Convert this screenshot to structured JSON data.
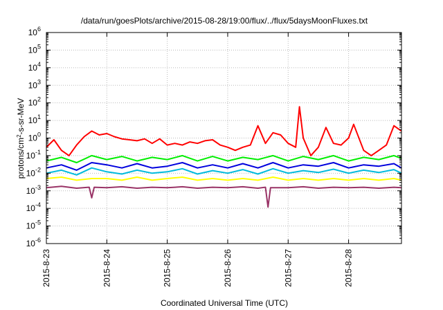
{
  "chart_data": {
    "type": "line",
    "title": "/data/run/goesPlots/archive/2015-08-28/19:00/flux/../flux/5daysMoonFluxes.txt",
    "xlabel": "Coordinated Universal Time (UTC)",
    "ylabel": {
      "prefix": "protons/cm",
      "superscript": "2",
      "suffix": "-s-sr-MeV"
    },
    "y_scale": "log",
    "ylim": [
      1e-06,
      1000000.0
    ],
    "y_ticks": [
      {
        "exp": -6,
        "base": "10",
        "sup": "-6"
      },
      {
        "exp": -5,
        "base": "10",
        "sup": "-5"
      },
      {
        "exp": -4,
        "base": "10",
        "sup": "-4"
      },
      {
        "exp": -3,
        "base": "10",
        "sup": "-3"
      },
      {
        "exp": -2,
        "base": "10",
        "sup": "-2"
      },
      {
        "exp": -1,
        "base": "10",
        "sup": "-1"
      },
      {
        "exp": 0,
        "base": "10",
        "sup": "0"
      },
      {
        "exp": 1,
        "base": "10",
        "sup": "1"
      },
      {
        "exp": 2,
        "base": "10",
        "sup": "2"
      },
      {
        "exp": 3,
        "base": "10",
        "sup": "3"
      },
      {
        "exp": 4,
        "base": "10",
        "sup": "4"
      },
      {
        "exp": 5,
        "base": "10",
        "sup": "5"
      },
      {
        "exp": 6,
        "base": "10",
        "sup": "6"
      }
    ],
    "xlim": [
      "2015-08-23T00:00",
      "2015-08-28T21:00"
    ],
    "x_ticks": [
      {
        "date": "2015-08-23T00:00",
        "label": "2015-8-23"
      },
      {
        "date": "2015-08-24T00:00",
        "label": "2015-8-24"
      },
      {
        "date": "2015-08-25T00:00",
        "label": "2015-8-25"
      },
      {
        "date": "2015-08-26T00:00",
        "label": "2015-8-26"
      },
      {
        "date": "2015-08-27T00:00",
        "label": "2015-8-27"
      },
      {
        "date": "2015-08-28T00:00",
        "label": "2015-8-28"
      }
    ],
    "grid": true,
    "legend": "none",
    "series": [
      {
        "color": "#ff0000",
        "points": [
          [
            "2015-08-23T00:00",
            0.3
          ],
          [
            "2015-08-23T03:00",
            0.8
          ],
          [
            "2015-08-23T06:00",
            0.2
          ],
          [
            "2015-08-23T09:00",
            0.1
          ],
          [
            "2015-08-23T12:00",
            0.4
          ],
          [
            "2015-08-23T15:00",
            1.2
          ],
          [
            "2015-08-23T18:00",
            2.5
          ],
          [
            "2015-08-23T21:00",
            1.5
          ],
          [
            "2015-08-24T00:00",
            1.8
          ],
          [
            "2015-08-24T03:00",
            1.2
          ],
          [
            "2015-08-24T06:00",
            0.9
          ],
          [
            "2015-08-24T09:00",
            0.8
          ],
          [
            "2015-08-24T12:00",
            0.7
          ],
          [
            "2015-08-24T15:00",
            0.9
          ],
          [
            "2015-08-24T18:00",
            0.5
          ],
          [
            "2015-08-24T21:00",
            0.9
          ],
          [
            "2015-08-25T00:00",
            0.4
          ],
          [
            "2015-08-25T03:00",
            0.5
          ],
          [
            "2015-08-25T06:00",
            0.4
          ],
          [
            "2015-08-25T09:00",
            0.6
          ],
          [
            "2015-08-25T12:00",
            0.5
          ],
          [
            "2015-08-25T15:00",
            0.7
          ],
          [
            "2015-08-25T18:00",
            0.8
          ],
          [
            "2015-08-25T21:00",
            0.4
          ],
          [
            "2015-08-26T00:00",
            0.3
          ],
          [
            "2015-08-26T03:00",
            0.2
          ],
          [
            "2015-08-26T06:00",
            0.3
          ],
          [
            "2015-08-26T09:00",
            0.4
          ],
          [
            "2015-08-26T12:00",
            5.0
          ],
          [
            "2015-08-26T15:00",
            0.5
          ],
          [
            "2015-08-26T18:00",
            2.0
          ],
          [
            "2015-08-26T21:00",
            1.5
          ],
          [
            "2015-08-27T00:00",
            0.5
          ],
          [
            "2015-08-27T03:00",
            0.3
          ],
          [
            "2015-08-27T04:30",
            60.0
          ],
          [
            "2015-08-27T06:00",
            1.0
          ],
          [
            "2015-08-27T09:00",
            0.1
          ],
          [
            "2015-08-27T12:00",
            0.3
          ],
          [
            "2015-08-27T15:00",
            4.0
          ],
          [
            "2015-08-27T18:00",
            0.5
          ],
          [
            "2015-08-27T21:00",
            0.4
          ],
          [
            "2015-08-28T00:00",
            1.0
          ],
          [
            "2015-08-28T02:00",
            6.0
          ],
          [
            "2015-08-28T06:00",
            0.2
          ],
          [
            "2015-08-28T09:00",
            0.1
          ],
          [
            "2015-08-28T12:00",
            0.2
          ],
          [
            "2015-08-28T15:00",
            0.4
          ],
          [
            "2015-08-28T18:00",
            5.0
          ],
          [
            "2015-08-28T21:00",
            2.5
          ]
        ]
      },
      {
        "color": "#00ee00",
        "points": [
          [
            "2015-08-23T00:00",
            0.05
          ],
          [
            "2015-08-23T06:00",
            0.08
          ],
          [
            "2015-08-23T12:00",
            0.04
          ],
          [
            "2015-08-23T18:00",
            0.1
          ],
          [
            "2015-08-24T00:00",
            0.06
          ],
          [
            "2015-08-24T06:00",
            0.09
          ],
          [
            "2015-08-24T12:00",
            0.05
          ],
          [
            "2015-08-24T18:00",
            0.08
          ],
          [
            "2015-08-25T00:00",
            0.06
          ],
          [
            "2015-08-25T06:00",
            0.1
          ],
          [
            "2015-08-25T12:00",
            0.05
          ],
          [
            "2015-08-25T18:00",
            0.09
          ],
          [
            "2015-08-26T00:00",
            0.05
          ],
          [
            "2015-08-26T06:00",
            0.08
          ],
          [
            "2015-08-26T12:00",
            0.06
          ],
          [
            "2015-08-26T18:00",
            0.1
          ],
          [
            "2015-08-27T00:00",
            0.05
          ],
          [
            "2015-08-27T06:00",
            0.09
          ],
          [
            "2015-08-27T12:00",
            0.06
          ],
          [
            "2015-08-27T18:00",
            0.1
          ],
          [
            "2015-08-28T00:00",
            0.05
          ],
          [
            "2015-08-28T06:00",
            0.08
          ],
          [
            "2015-08-28T12:00",
            0.06
          ],
          [
            "2015-08-28T18:00",
            0.1
          ],
          [
            "2015-08-28T21:00",
            0.07
          ]
        ]
      },
      {
        "color": "#0000dd",
        "points": [
          [
            "2015-08-23T00:00",
            0.02
          ],
          [
            "2015-08-23T06:00",
            0.03
          ],
          [
            "2015-08-23T12:00",
            0.015
          ],
          [
            "2015-08-23T18:00",
            0.04
          ],
          [
            "2015-08-24T00:00",
            0.03
          ],
          [
            "2015-08-24T06:00",
            0.02
          ],
          [
            "2015-08-24T12:00",
            0.035
          ],
          [
            "2015-08-24T18:00",
            0.02
          ],
          [
            "2015-08-25T00:00",
            0.025
          ],
          [
            "2015-08-25T06:00",
            0.04
          ],
          [
            "2015-08-25T12:00",
            0.02
          ],
          [
            "2015-08-25T18:00",
            0.03
          ],
          [
            "2015-08-26T00:00",
            0.02
          ],
          [
            "2015-08-26T06:00",
            0.035
          ],
          [
            "2015-08-26T12:00",
            0.02
          ],
          [
            "2015-08-26T18:00",
            0.04
          ],
          [
            "2015-08-27T00:00",
            0.02
          ],
          [
            "2015-08-27T06:00",
            0.03
          ],
          [
            "2015-08-27T12:00",
            0.025
          ],
          [
            "2015-08-27T18:00",
            0.04
          ],
          [
            "2015-08-28T00:00",
            0.02
          ],
          [
            "2015-08-28T06:00",
            0.03
          ],
          [
            "2015-08-28T12:00",
            0.025
          ],
          [
            "2015-08-28T18:00",
            0.035
          ],
          [
            "2015-08-28T21:00",
            0.02
          ]
        ]
      },
      {
        "color": "#00bbdd",
        "points": [
          [
            "2015-08-23T00:00",
            0.01
          ],
          [
            "2015-08-23T06:00",
            0.015
          ],
          [
            "2015-08-23T12:00",
            0.008
          ],
          [
            "2015-08-23T18:00",
            0.02
          ],
          [
            "2015-08-24T00:00",
            0.012
          ],
          [
            "2015-08-24T06:00",
            0.009
          ],
          [
            "2015-08-24T12:00",
            0.015
          ],
          [
            "2015-08-24T18:00",
            0.01
          ],
          [
            "2015-08-25T00:00",
            0.012
          ],
          [
            "2015-08-25T06:00",
            0.018
          ],
          [
            "2015-08-25T12:00",
            0.009
          ],
          [
            "2015-08-25T18:00",
            0.014
          ],
          [
            "2015-08-26T00:00",
            0.01
          ],
          [
            "2015-08-26T06:00",
            0.016
          ],
          [
            "2015-08-26T12:00",
            0.009
          ],
          [
            "2015-08-26T18:00",
            0.018
          ],
          [
            "2015-08-27T00:00",
            0.01
          ],
          [
            "2015-08-27T06:00",
            0.014
          ],
          [
            "2015-08-27T12:00",
            0.011
          ],
          [
            "2015-08-27T18:00",
            0.017
          ],
          [
            "2015-08-28T00:00",
            0.01
          ],
          [
            "2015-08-28T06:00",
            0.015
          ],
          [
            "2015-08-28T12:00",
            0.011
          ],
          [
            "2015-08-28T18:00",
            0.016
          ],
          [
            "2015-08-28T21:00",
            0.01
          ]
        ]
      },
      {
        "color": "#ffff00",
        "points": [
          [
            "2015-08-23T00:00",
            0.005
          ],
          [
            "2015-08-23T06:00",
            0.006
          ],
          [
            "2015-08-23T12:00",
            0.004
          ],
          [
            "2015-08-23T18:00",
            0.005
          ],
          [
            "2015-08-24T00:00",
            0.005
          ],
          [
            "2015-08-24T06:00",
            0.004
          ],
          [
            "2015-08-24T12:00",
            0.006
          ],
          [
            "2015-08-24T18:00",
            0.004
          ],
          [
            "2015-08-25T00:00",
            0.005
          ],
          [
            "2015-08-25T06:00",
            0.006
          ],
          [
            "2015-08-25T12:00",
            0.004
          ],
          [
            "2015-08-25T18:00",
            0.005
          ],
          [
            "2015-08-26T00:00",
            0.004
          ],
          [
            "2015-08-26T06:00",
            0.005
          ],
          [
            "2015-08-26T12:00",
            0.004
          ],
          [
            "2015-08-26T18:00",
            0.006
          ],
          [
            "2015-08-27T00:00",
            0.004
          ],
          [
            "2015-08-27T06:00",
            0.005
          ],
          [
            "2015-08-27T12:00",
            0.004
          ],
          [
            "2015-08-27T18:00",
            0.005
          ],
          [
            "2015-08-28T00:00",
            0.004
          ],
          [
            "2015-08-28T06:00",
            0.005
          ],
          [
            "2015-08-28T12:00",
            0.004
          ],
          [
            "2015-08-28T18:00",
            0.005
          ],
          [
            "2015-08-28T21:00",
            0.004
          ]
        ]
      },
      {
        "color": "#993366",
        "points": [
          [
            "2015-08-23T00:00",
            0.0015
          ],
          [
            "2015-08-23T06:00",
            0.0018
          ],
          [
            "2015-08-23T12:00",
            0.0014
          ],
          [
            "2015-08-23T17:00",
            0.0016
          ],
          [
            "2015-08-23T18:00",
            0.0004
          ],
          [
            "2015-08-23T19:00",
            0.0016
          ],
          [
            "2015-08-24T00:00",
            0.0015
          ],
          [
            "2015-08-24T06:00",
            0.0017
          ],
          [
            "2015-08-24T12:00",
            0.0014
          ],
          [
            "2015-08-24T18:00",
            0.0016
          ],
          [
            "2015-08-25T00:00",
            0.0015
          ],
          [
            "2015-08-25T06:00",
            0.0017
          ],
          [
            "2015-08-25T12:00",
            0.0014
          ],
          [
            "2015-08-25T18:00",
            0.0016
          ],
          [
            "2015-08-26T00:00",
            0.0015
          ],
          [
            "2015-08-26T06:00",
            0.0017
          ],
          [
            "2015-08-26T12:00",
            0.0014
          ],
          [
            "2015-08-26T15:00",
            0.0016
          ],
          [
            "2015-08-26T16:00",
            0.00012
          ],
          [
            "2015-08-26T17:00",
            0.0015
          ],
          [
            "2015-08-27T00:00",
            0.0015
          ],
          [
            "2015-08-27T06:00",
            0.0017
          ],
          [
            "2015-08-27T12:00",
            0.0014
          ],
          [
            "2015-08-27T18:00",
            0.0016
          ],
          [
            "2015-08-28T00:00",
            0.0015
          ],
          [
            "2015-08-28T06:00",
            0.0016
          ],
          [
            "2015-08-28T12:00",
            0.0014
          ],
          [
            "2015-08-28T18:00",
            0.0016
          ],
          [
            "2015-08-28T21:00",
            0.0015
          ]
        ]
      }
    ]
  }
}
